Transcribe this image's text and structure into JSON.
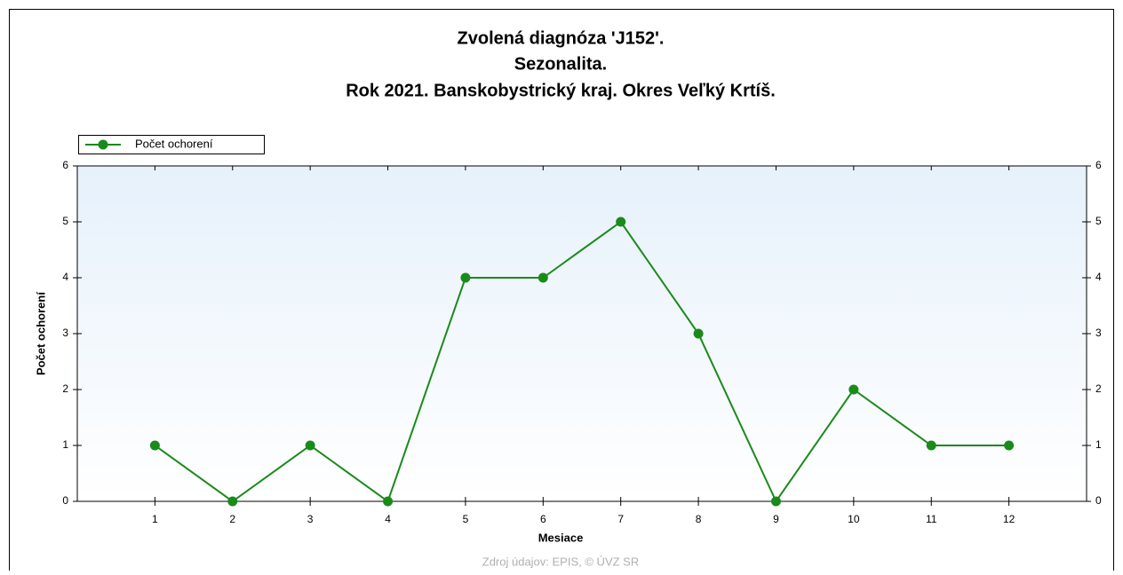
{
  "chart_data": {
    "type": "line",
    "title": [
      "Zvolená diagnóza 'J152'.",
      "Sezonalita.",
      "Rok 2021. Banskobystrický kraj. Okres Veľký Krtíš."
    ],
    "x_label": "Mesiace",
    "y_label": "Počet ochorení",
    "source": "Zdroj údajov: EPIS, © ÚVZ SR",
    "x": [
      1,
      2,
      3,
      4,
      5,
      6,
      7,
      8,
      9,
      10,
      11,
      12
    ],
    "series": [
      {
        "name": "Počet ochorení",
        "color": "#1a8a1a",
        "values": [
          1,
          0,
          1,
          0,
          4,
          4,
          5,
          3,
          0,
          2,
          1,
          1
        ]
      }
    ],
    "xlim": [
      0,
      13
    ],
    "xticks": [
      1,
      2,
      3,
      4,
      5,
      6,
      7,
      8,
      9,
      10,
      11,
      12
    ],
    "ylim": [
      0,
      6
    ],
    "yticks": [
      0,
      1,
      2,
      3,
      4,
      5,
      6
    ],
    "legend": "top-left",
    "grid": false
  }
}
